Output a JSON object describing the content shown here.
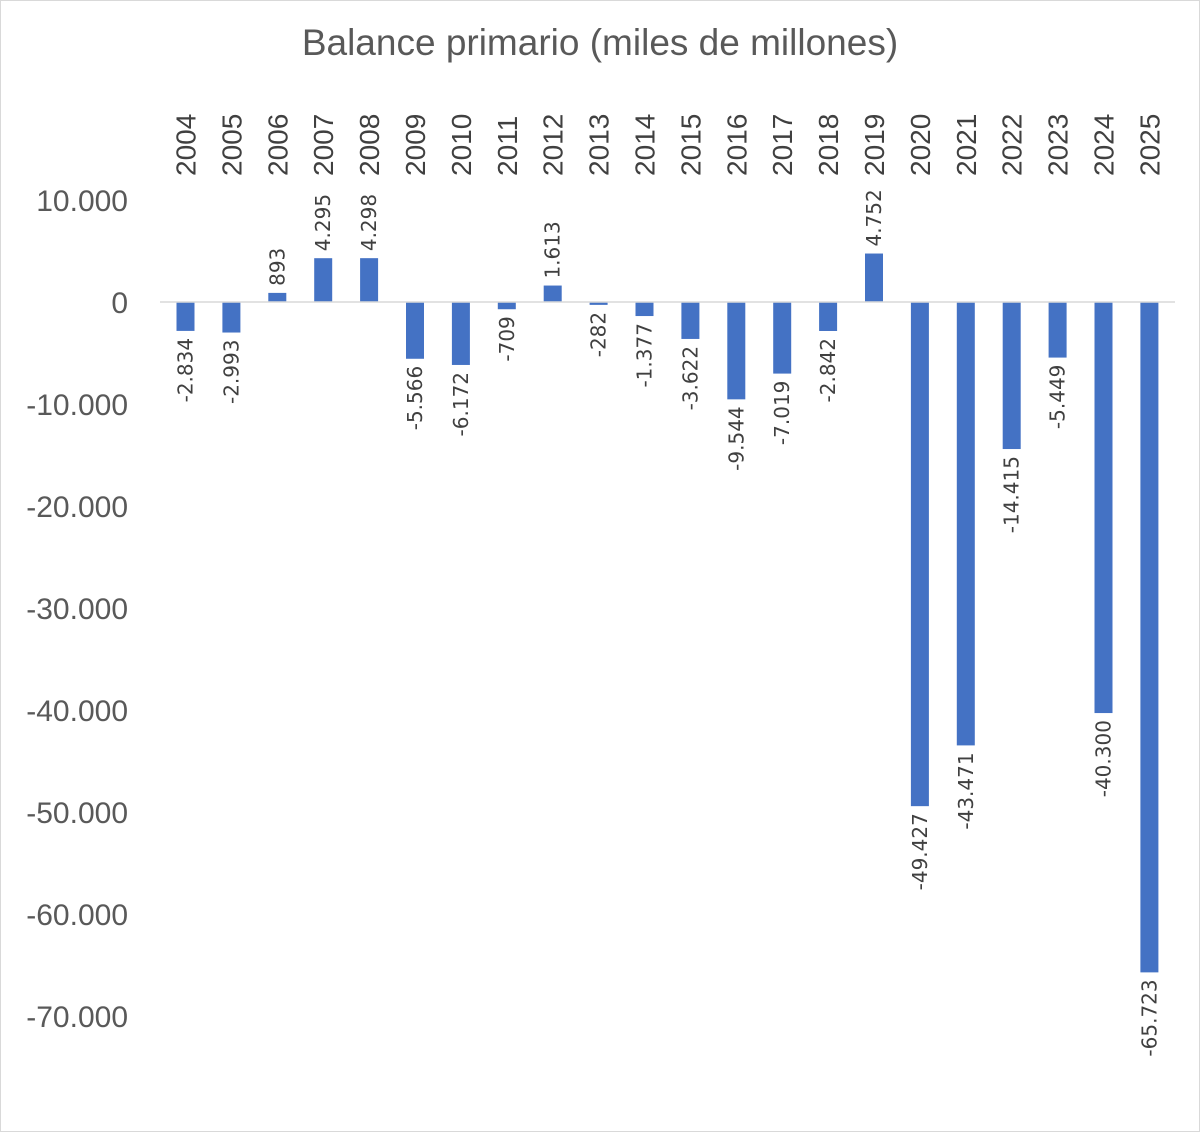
{
  "chart_data": {
    "type": "bar",
    "title": "Balance primario (miles de millones)",
    "categories": [
      "2004",
      "2005",
      "2006",
      "2007",
      "2008",
      "2009",
      "2010",
      "2011",
      "2012",
      "2013",
      "2014",
      "2015",
      "2016",
      "2017",
      "2018",
      "2019",
      "2020",
      "2021",
      "2022",
      "2023",
      "2024",
      "2025"
    ],
    "values": [
      -2834,
      -2993,
      893,
      4295,
      4298,
      -5566,
      -6172,
      -709,
      1613,
      -282,
      -1377,
      -3622,
      -9544,
      -7019,
      -2842,
      4752,
      -49427,
      -43471,
      -14415,
      -5449,
      -40300,
      -65723
    ],
    "data_labels": [
      "-2.834",
      "-2.993",
      "893",
      "4.295",
      "4.298",
      "-5.566",
      "-6.172",
      "-709",
      "1.613",
      "-282",
      "-1.377",
      "-3.622",
      "-9.544",
      "-7.019",
      "-2.842",
      "4.752",
      "-49.427",
      "-43.471",
      "-14.415",
      "-5.449",
      "-40.300",
      "-65.723"
    ],
    "ylim": [
      -70000,
      10000
    ],
    "yticks": [
      10000,
      0,
      -10000,
      -20000,
      -30000,
      -40000,
      -50000,
      -60000,
      -70000
    ],
    "ytick_labels": [
      "10.000",
      "0",
      "-10.000",
      "-20.000",
      "-30.000",
      "-40.000",
      "-50.000",
      "-60.000",
      "-70.000"
    ],
    "bar_color": "#4472c4",
    "axis_color": "#d9d9d9",
    "xlabel": "",
    "ylabel": "",
    "gridlines": false,
    "legend": "none"
  }
}
